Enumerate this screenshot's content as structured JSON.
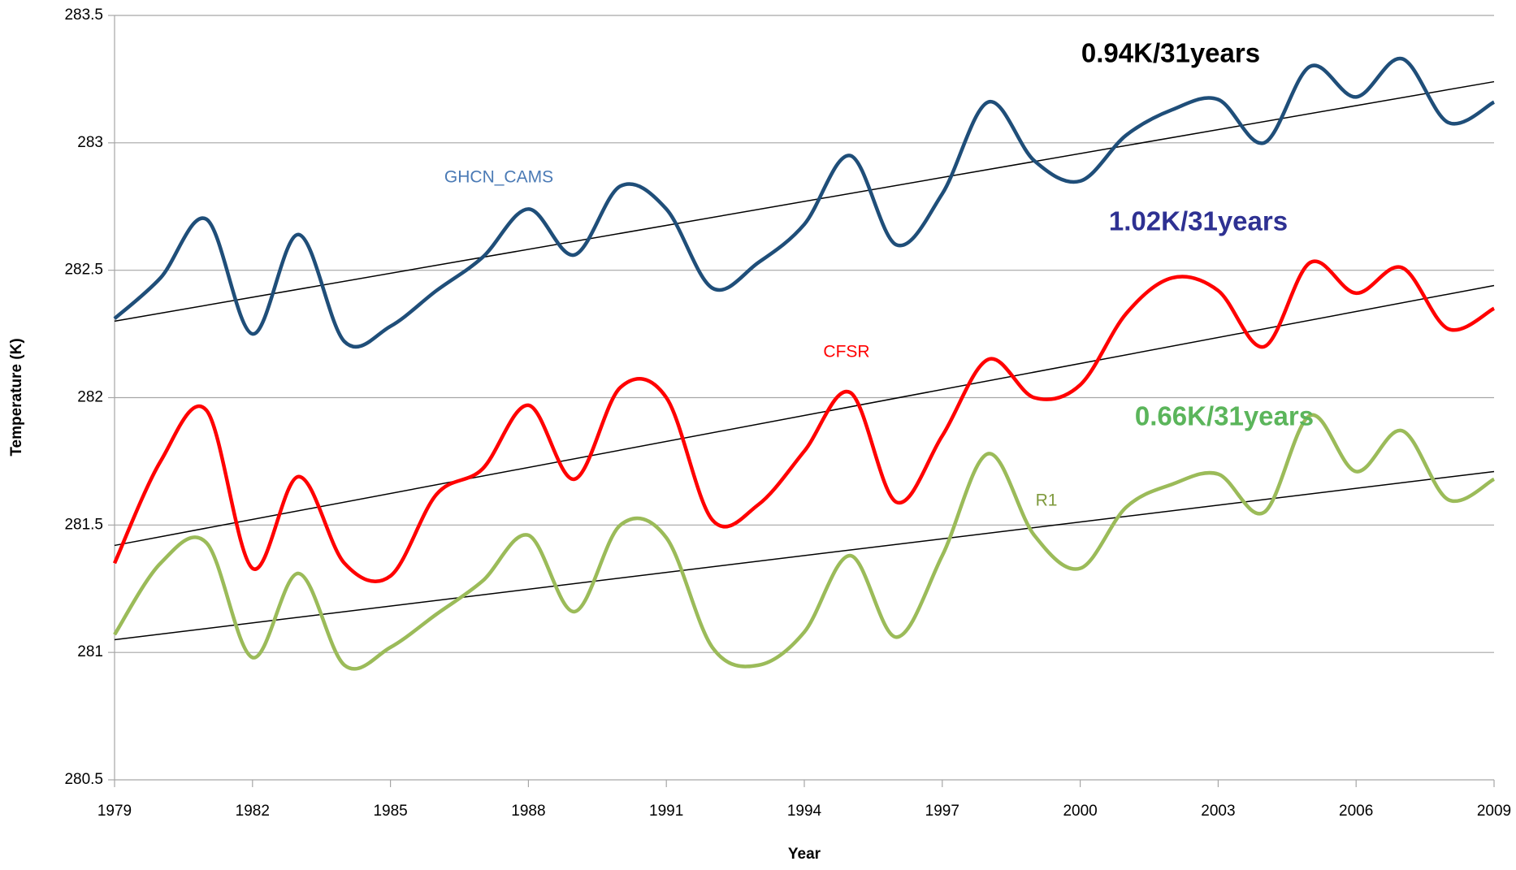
{
  "chart_data": {
    "type": "line",
    "x_label": "Year",
    "y_label": "Temperature (K)",
    "x": [
      1979,
      1980,
      1981,
      1982,
      1983,
      1984,
      1985,
      1986,
      1987,
      1988,
      1989,
      1990,
      1991,
      1992,
      1993,
      1994,
      1995,
      1996,
      1997,
      1998,
      1999,
      2000,
      2001,
      2002,
      2003,
      2004,
      2005,
      2006,
      2007,
      2008,
      2009
    ],
    "series": [
      {
        "name": "GHCN_CAMS",
        "color": "#1f4e79",
        "label_color": "#4a7ab5",
        "values": [
          282.31,
          282.47,
          282.7,
          282.25,
          282.64,
          282.22,
          282.28,
          282.42,
          282.55,
          282.74,
          282.56,
          282.83,
          282.74,
          282.43,
          282.53,
          282.68,
          282.95,
          282.6,
          282.8,
          283.16,
          282.93,
          282.85,
          283.03,
          283.13,
          283.17,
          283.0,
          283.3,
          283.18,
          283.33,
          283.08,
          283.16
        ]
      },
      {
        "name": "CFSR",
        "color": "#ff0000",
        "label_color": "#ff0000",
        "values": [
          281.35,
          281.75,
          281.95,
          281.33,
          281.69,
          281.35,
          281.3,
          281.62,
          281.72,
          281.97,
          281.68,
          282.04,
          282.0,
          281.52,
          281.58,
          281.79,
          282.02,
          281.59,
          281.85,
          282.15,
          282.0,
          282.05,
          282.33,
          282.47,
          282.42,
          282.2,
          282.53,
          282.41,
          282.51,
          282.27,
          282.35
        ]
      },
      {
        "name": "R1",
        "color": "#9bbb59",
        "label_color": "#7f9a3e",
        "values": [
          281.07,
          281.35,
          281.43,
          280.98,
          281.31,
          280.95,
          281.02,
          281.15,
          281.28,
          281.46,
          281.16,
          281.5,
          281.45,
          281.02,
          280.95,
          281.08,
          281.38,
          281.06,
          281.38,
          281.78,
          281.46,
          281.33,
          281.57,
          281.66,
          281.7,
          281.55,
          281.93,
          281.71,
          281.87,
          281.6,
          281.68
        ]
      }
    ],
    "trend_lines": [
      {
        "x": [
          1979,
          2009
        ],
        "values": [
          282.3,
          283.24
        ],
        "color": "#000000"
      },
      {
        "x": [
          1979,
          2009
        ],
        "values": [
          281.42,
          282.44
        ],
        "color": "#000000"
      },
      {
        "x": [
          1979,
          2009
        ],
        "values": [
          281.05,
          281.71
        ],
        "color": "#000000"
      }
    ],
    "annotations": [
      {
        "text": "0.94K/31years",
        "color": "#000000"
      },
      {
        "text": "1.02K/31years",
        "color": "#2e3192"
      },
      {
        "text": "0.66K/31years",
        "color": "#5bb55b"
      }
    ],
    "xlim": [
      1979,
      2009
    ],
    "xticks": [
      1979,
      1982,
      1985,
      1988,
      1991,
      1994,
      1997,
      2000,
      2003,
      2006,
      2009
    ],
    "ylim": [
      280.5,
      283.5
    ],
    "yticks": [
      280.5,
      281,
      281.5,
      282,
      282.5,
      283,
      283.5
    ],
    "grid": true
  }
}
